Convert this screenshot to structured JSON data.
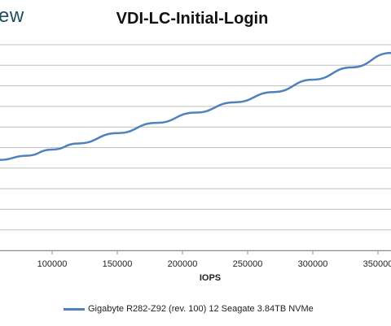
{
  "brand": {
    "text": "ew"
  },
  "chart_data": {
    "type": "line",
    "title": "VDI-LC-Initial-Login",
    "xlabel": "IOPS",
    "ylabel": "",
    "xlim": [
      60000,
      360000
    ],
    "x_ticks": [
      100000,
      150000,
      200000,
      250000,
      300000,
      350000
    ],
    "x_tick_labels": [
      "100000",
      "150000",
      "200000",
      "250000",
      "300000",
      "350000"
    ],
    "ylim": [
      0,
      10
    ],
    "grid": true,
    "legend_placement": "bottom",
    "series": [
      {
        "name": "Gigabyte R282-Z92 (rev. 100) 12 Seagate 3.84TB NVMe",
        "color": "#4f81bd",
        "x": [
          60000,
          80000,
          100000,
          120000,
          150000,
          180000,
          210000,
          240000,
          270000,
          300000,
          330000,
          360000
        ],
        "y": [
          4.4,
          4.6,
          4.9,
          5.2,
          5.7,
          6.2,
          6.7,
          7.2,
          7.7,
          8.3,
          8.9,
          9.6
        ]
      }
    ]
  }
}
